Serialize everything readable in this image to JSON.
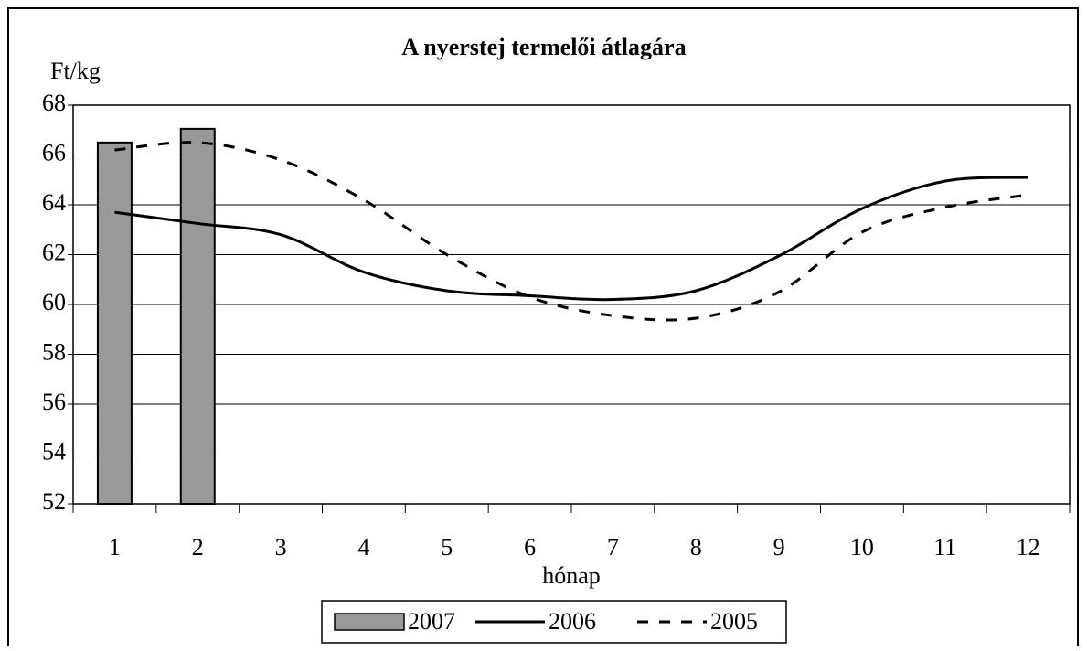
{
  "chart_data": {
    "type": "combo",
    "title": "A nyerstej termelői átlagára",
    "y_label": "Ft/kg",
    "x_label": "hónap",
    "categories": [
      "1",
      "2",
      "3",
      "4",
      "5",
      "6",
      "7",
      "8",
      "9",
      "10",
      "11",
      "12"
    ],
    "ylim": [
      52,
      68
    ],
    "yticks": [
      52,
      54,
      56,
      58,
      60,
      62,
      64,
      66,
      68
    ],
    "grid": true,
    "legend": "bottom",
    "series": [
      {
        "name": "2007",
        "type": "bar",
        "color": "#999999",
        "values": [
          66.5,
          67.05,
          null,
          null,
          null,
          null,
          null,
          null,
          null,
          null,
          null,
          null
        ]
      },
      {
        "name": "2006",
        "type": "line",
        "dashed": false,
        "color": "#000000",
        "values": [
          63.7,
          63.25,
          62.8,
          61.3,
          60.55,
          60.35,
          60.2,
          60.55,
          61.95,
          63.85,
          64.95,
          65.1
        ]
      },
      {
        "name": "2005",
        "type": "line",
        "dashed": true,
        "color": "#000000",
        "values": [
          66.2,
          66.5,
          65.8,
          64.2,
          62.0,
          60.3,
          59.55,
          59.45,
          60.5,
          62.9,
          63.9,
          64.4
        ]
      }
    ]
  }
}
